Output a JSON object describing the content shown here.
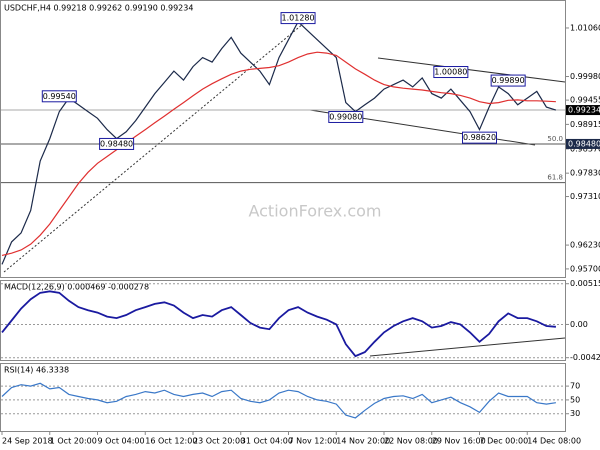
{
  "chart_data": [
    {
      "type": "line",
      "title": "USDCHF,H4  0.99218 0.99262 0.99190 0.99234",
      "watermark": "ActionForex.com",
      "ylim": [
        0.9552,
        1.0166
      ],
      "yticks": [
        {
          "value": 1.0106,
          "label": "1.01060"
        },
        {
          "value": 0.9998,
          "label": "0.99980"
        },
        {
          "value": 0.99455,
          "label": "0.99455"
        },
        {
          "value": 0.98915,
          "label": "0.98915"
        },
        {
          "value": 0.9837,
          "label": "0.98370"
        },
        {
          "value": 0.9783,
          "label": "0.97830"
        },
        {
          "value": 0.9731,
          "label": "0.97310"
        },
        {
          "value": 0.9623,
          "label": "0.96230"
        },
        {
          "value": 0.957,
          "label": "0.95700"
        }
      ],
      "last_price": 0.99234,
      "levels": [
        {
          "value": 0.9848,
          "label": "50.0",
          "price_label": "0.98480"
        },
        {
          "value": 0.9762,
          "label": "61.8"
        }
      ],
      "annotations": [
        {
          "value": 1.0128,
          "label": "1.01280",
          "x": 31
        },
        {
          "value": 0.9954,
          "label": "0.99540",
          "x": 6
        },
        {
          "value": 0.9848,
          "label": "0.98480",
          "x": 12
        },
        {
          "value": 1.0008,
          "label": "1.00080",
          "x": 47
        },
        {
          "value": 0.9989,
          "label": "0.99890",
          "x": 53
        },
        {
          "value": 0.9908,
          "label": "0.99080",
          "x": 36
        },
        {
          "value": 0.9862,
          "label": "0.98620",
          "x": 50
        }
      ],
      "series": [
        {
          "name": "Price",
          "color": "#1c2a4a",
          "values": [
            0.958,
            0.963,
            0.965,
            0.97,
            0.981,
            0.986,
            0.992,
            0.995,
            0.9935,
            0.992,
            0.9905,
            0.988,
            0.986,
            0.9875,
            0.99,
            0.993,
            0.996,
            0.9985,
            1.001,
            0.999,
            1.002,
            1.004,
            1.003,
            1.006,
            1.0085,
            1.005,
            1.003,
            1.001,
            0.998,
            1.004,
            1.008,
            1.012,
            1.01,
            1.008,
            1.006,
            1.004,
            0.994,
            0.992,
            0.9935,
            0.995,
            0.997,
            0.998,
            0.999,
            0.9975,
            0.9995,
            0.996,
            0.995,
            0.997,
            0.9945,
            0.992,
            0.988,
            0.993,
            0.9975,
            0.996,
            0.9935,
            0.995,
            0.9965,
            0.993,
            0.99234
          ]
        },
        {
          "name": "MA",
          "color": "#e03030",
          "values": [
            0.96,
            0.9605,
            0.9612,
            0.9625,
            0.9645,
            0.967,
            0.97,
            0.973,
            0.976,
            0.9785,
            0.9805,
            0.982,
            0.9835,
            0.985,
            0.9865,
            0.988,
            0.9895,
            0.991,
            0.9925,
            0.994,
            0.9955,
            0.997,
            0.9982,
            0.9993,
            1.0003,
            1.001,
            1.0014,
            1.0016,
            1.0018,
            1.0022,
            1.003,
            1.004,
            1.0048,
            1.0052,
            1.005,
            1.0045,
            1.003,
            1.0015,
            1.0003,
            0.999,
            0.998,
            0.9975,
            0.9972,
            0.997,
            0.9968,
            0.9965,
            0.9962,
            0.996,
            0.9956,
            0.995,
            0.9942,
            0.9938,
            0.994,
            0.9945,
            0.9946,
            0.9944,
            0.9944,
            0.9943,
            0.9942
          ]
        }
      ]
    },
    {
      "type": "line",
      "title": "MACD(12,26,9) 0.000469 -0.000278",
      "ylim": [
        -0.0045,
        0.0055
      ],
      "yticks": [
        0.005156,
        {
          "value": 0,
          "label": "0.00"
        },
        -0.004209
      ],
      "grid": true,
      "series": [
        {
          "name": "MACD",
          "color": "#1a1aa0",
          "values": [
            -0.001,
            0.0005,
            0.002,
            0.0032,
            0.004,
            0.0042,
            0.004,
            0.003,
            0.0022,
            0.0018,
            0.0015,
            0.001,
            0.0008,
            0.0012,
            0.0018,
            0.0022,
            0.0026,
            0.0028,
            0.0024,
            0.0015,
            0.0008,
            0.0012,
            0.001,
            0.0018,
            0.0022,
            0.0012,
            0.0002,
            -0.0004,
            -0.0006,
            0.0008,
            0.0018,
            0.0022,
            0.0015,
            0.001,
            0.0006,
            0,
            -0.0025,
            -0.004,
            -0.0035,
            -0.0022,
            -0.001,
            -0.0002,
            0.0004,
            0.0008,
            0.0004,
            -0.0004,
            -0.0002,
            0.0003,
            0,
            -0.001,
            -0.0022,
            -0.0012,
            0.0004,
            0.0014,
            0.0008,
            0.0008,
            0.0004,
            -0.0002,
            -0.0003
          ]
        }
      ]
    },
    {
      "type": "line",
      "title": "RSI(14) 46.3338",
      "ylim": [
        5,
        102
      ],
      "yticks": [
        70,
        50,
        30
      ],
      "grid": true,
      "categories": [
        "24 Sep 2018",
        null,
        null,
        null,
        null,
        "1 Oct 20:00",
        null,
        null,
        null,
        null,
        "9 Oct 04:00",
        null,
        null,
        null,
        null,
        "16 Oct 12:00",
        null,
        null,
        null,
        null,
        "23 Oct 20:00",
        null,
        null,
        null,
        null,
        "31 Oct 04:00",
        null,
        null,
        null,
        null,
        "7 Nov 12:00",
        null,
        null,
        null,
        null,
        "14 Nov 20:00",
        null,
        null,
        null,
        null,
        "22 Nov 08:00",
        null,
        null,
        null,
        null,
        "29 Nov 16:00",
        null,
        null,
        null,
        null,
        "7 Dec 00:00",
        null,
        null,
        null,
        null,
        "14 Dec 08:00",
        null,
        null,
        null
      ],
      "series": [
        {
          "name": "RSI",
          "color": "#3a78c8",
          "values": [
            55,
            68,
            72,
            70,
            74,
            66,
            68,
            58,
            55,
            52,
            50,
            46,
            48,
            55,
            58,
            62,
            60,
            64,
            58,
            55,
            58,
            60,
            55,
            62,
            64,
            52,
            48,
            46,
            50,
            60,
            64,
            62,
            55,
            50,
            48,
            44,
            28,
            24,
            35,
            45,
            52,
            55,
            56,
            52,
            58,
            46,
            50,
            54,
            46,
            40,
            32,
            48,
            60,
            55,
            55,
            55,
            46,
            44,
            46
          ]
        }
      ]
    }
  ]
}
